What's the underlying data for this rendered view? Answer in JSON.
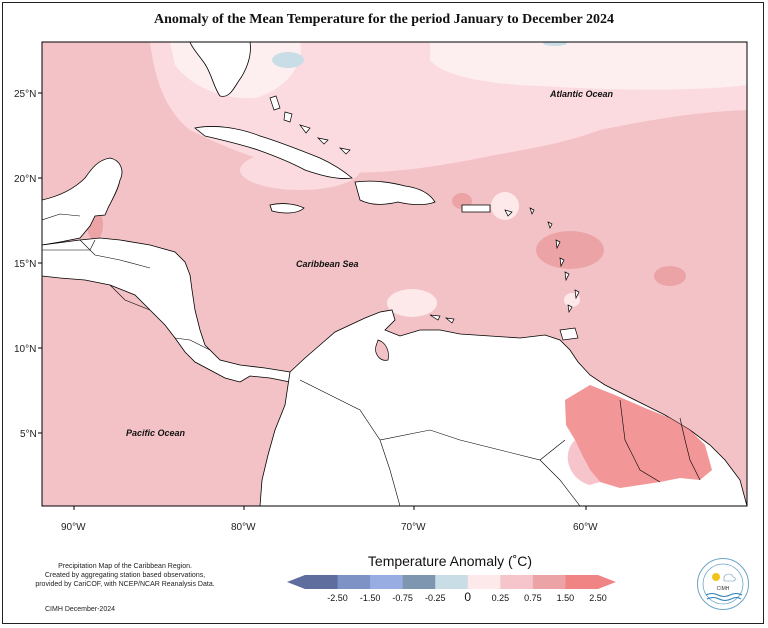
{
  "title": "Anomaly of the Mean Temperature for the period January to December 2024",
  "map_labels": {
    "atlantic": "Atlantic Ocean",
    "caribbean": "Caribbean Sea",
    "pacific": "Pacific Ocean"
  },
  "lat_ticks": [
    "25°N",
    "20°N",
    "15°N",
    "10°N",
    "5°N"
  ],
  "lon_ticks": [
    "90°W",
    "80°W",
    "70°W",
    "60°W"
  ],
  "footnote": {
    "line1": "Precipitation Map of the Caribbean Region.",
    "line2": "Created by aggregating station based observations,",
    "line3": "provided by CariCOF, with NCEP/NCAR Reanalysis Data.",
    "credit": "CIMH December-2024"
  },
  "legend": {
    "title": "Temperature Anomaly (˚C)",
    "labels": [
      "-2.50",
      "-1.50",
      "-0.75",
      "-0.25",
      "0",
      "0.25",
      "0.75",
      "1.50",
      "2.50"
    ],
    "colors": [
      "#5e6d9e",
      "#7f92c6",
      "#98aee2",
      "#7f96b0",
      "#c8dde6",
      "#fde9e9",
      "#f6c5cc",
      "#eba3a6",
      "#f08485"
    ]
  },
  "logo": {
    "text": "CIMH"
  }
}
